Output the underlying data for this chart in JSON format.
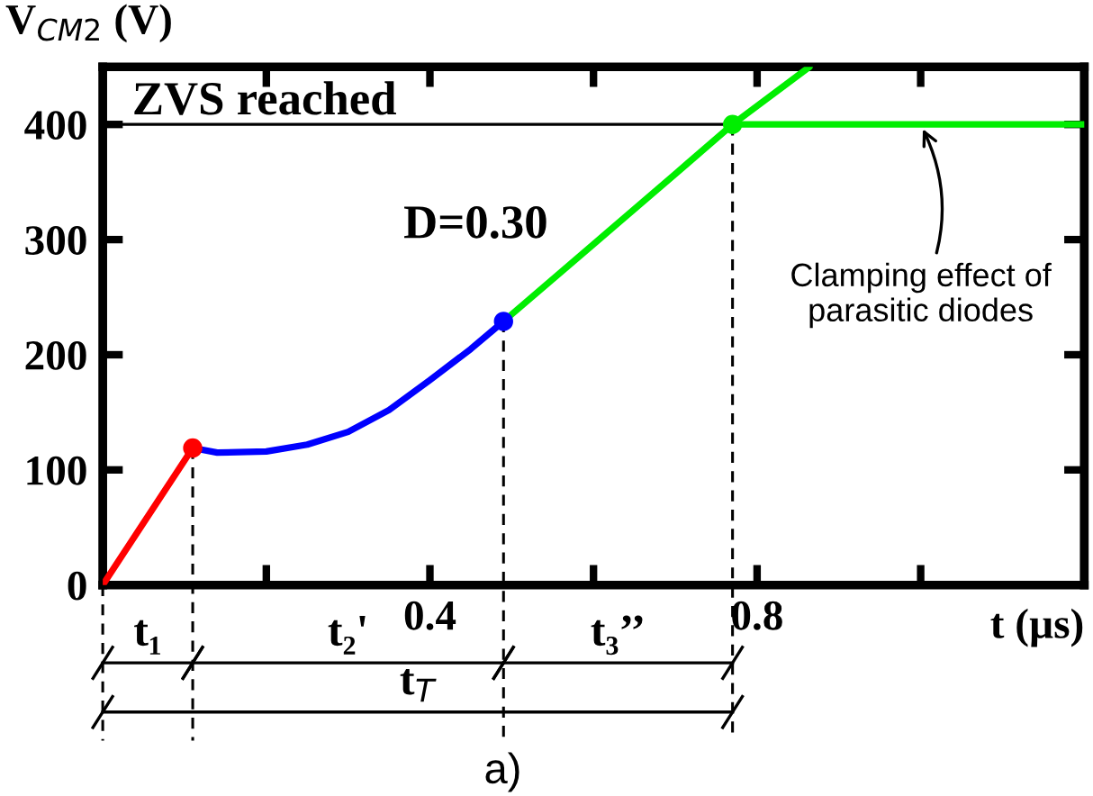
{
  "chart_data": {
    "type": "line",
    "ylabel": "V$_{CM2}$ (V)",
    "xlabel": "t (µs)",
    "xlim": [
      0,
      1.2
    ],
    "ylim": [
      0,
      450
    ],
    "xticks": [
      {
        "value": 0.2,
        "label": null
      },
      0.4,
      {
        "value": 0.6,
        "label": null
      },
      0.8,
      {
        "value": 1.0,
        "label": null
      }
    ],
    "yticks": [
      0,
      100,
      200,
      300,
      400
    ],
    "grid": false,
    "legend": false,
    "line_style": "solid",
    "series": [
      {
        "color": "#ff0000",
        "x": [
          0,
          0.11
        ],
        "values": [
          0,
          119
        ]
      },
      {
        "color": "#0000ff",
        "x": [
          0.11,
          0.14,
          0.2,
          0.25,
          0.3,
          0.35,
          0.4,
          0.45,
          0.49
        ],
        "values": [
          119,
          115,
          116,
          122,
          133,
          152,
          178,
          205,
          229
        ]
      },
      {
        "color": "#00ee00",
        "x": [
          0.49,
          0.6,
          0.7,
          0.77,
          0.864
        ],
        "values": [
          229,
          296,
          357,
          400,
          450
        ]
      },
      {
        "color": "#00ee00",
        "x": [
          0.77,
          1.2
        ],
        "values": [
          400,
          400
        ]
      },
      {
        "type": "scatter",
        "marker": "circle",
        "x": [
          0.11,
          0.49,
          0.77
        ],
        "values": [
          119,
          229,
          400
        ],
        "colors": [
          "#ff0000",
          "#0000ff",
          "#00ee00"
        ]
      }
    ],
    "ref_lines": [
      {
        "axis": "y",
        "value": 400,
        "label": "ZVS reached",
        "color": "#000000",
        "line_style": "solid"
      },
      {
        "axis": "x",
        "value": 0.11,
        "color": "#000000",
        "line_style": "dashed"
      },
      {
        "axis": "x",
        "value": 0.49,
        "color": "#000000",
        "line_style": "dashed"
      },
      {
        "axis": "x",
        "value": 0.77,
        "color": "#000000",
        "line_style": "dashed"
      }
    ],
    "annotations": [
      "D=0.30",
      {
        "text": "Clamping effect of\nparasitic diodes",
        "x": 1.0,
        "y": 400
      },
      "t₁",
      "t₂'",
      "t₃’’",
      "t$_{T}$",
      "a)"
    ]
  }
}
